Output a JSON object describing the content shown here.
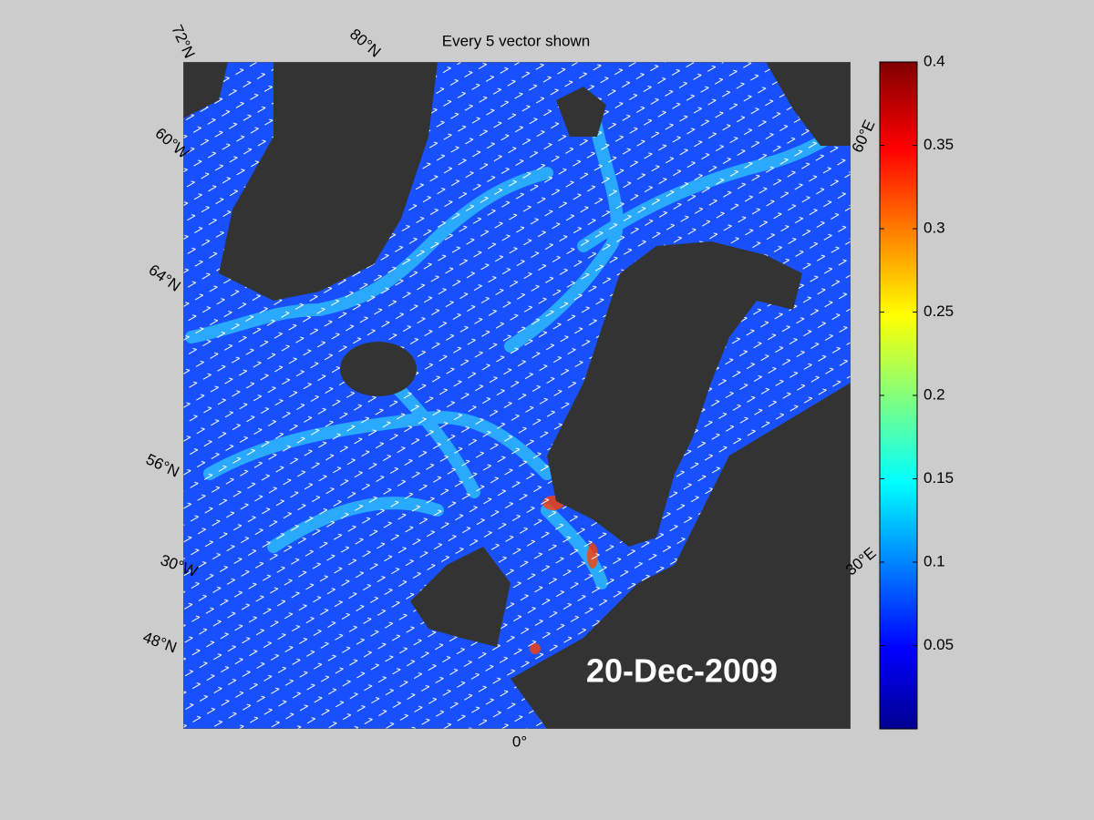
{
  "map": {
    "title": "Every 5 vector shown",
    "date": "20-Dec-2009",
    "graticule_labels": [
      "72°N",
      "80°N",
      "60°W",
      "64°N",
      "56°N",
      "30°W",
      "48°N",
      "0°",
      "30°E",
      "60°E"
    ],
    "colorbar": {
      "lim": [
        0,
        0.4
      ],
      "ticks": [
        0.05,
        0.1,
        0.15,
        0.2,
        0.25,
        0.3,
        0.35,
        0.4
      ]
    }
  }
}
